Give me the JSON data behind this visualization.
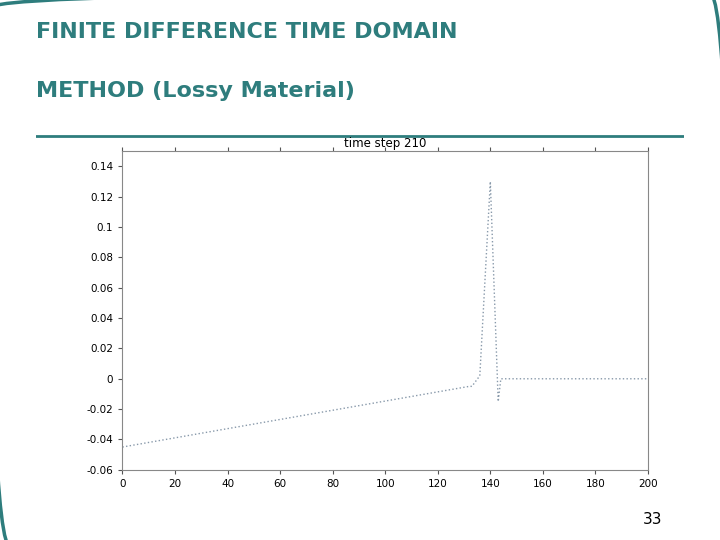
{
  "title_line1": "FINITE DIFFERENCE TIME DOMAIN",
  "title_line2": "METHOD (Lossy Material)",
  "title_color": "#2E7D7D",
  "title_fontsize": 16,
  "page_number": "33",
  "plot_title": "time step 210",
  "xlim": [
    0,
    200
  ],
  "ylim": [
    -0.06,
    0.15
  ],
  "xticks": [
    0,
    20,
    40,
    60,
    80,
    100,
    120,
    140,
    160,
    180,
    200
  ],
  "ytick_vals": [
    -0.06,
    -0.04,
    -0.02,
    0,
    0.02,
    0.04,
    0.06,
    0.08,
    0.1,
    0.12,
    0.14
  ],
  "ytick_labels": [
    "-0.06",
    "-0.04",
    "-0.02",
    "0",
    "0.02",
    "0.04",
    "0.06",
    "0.08",
    "0.1",
    "0.12",
    "0.14"
  ],
  "line_color": "#8899AA",
  "background_color": "#ffffff",
  "border_color": "#2E7D7D"
}
